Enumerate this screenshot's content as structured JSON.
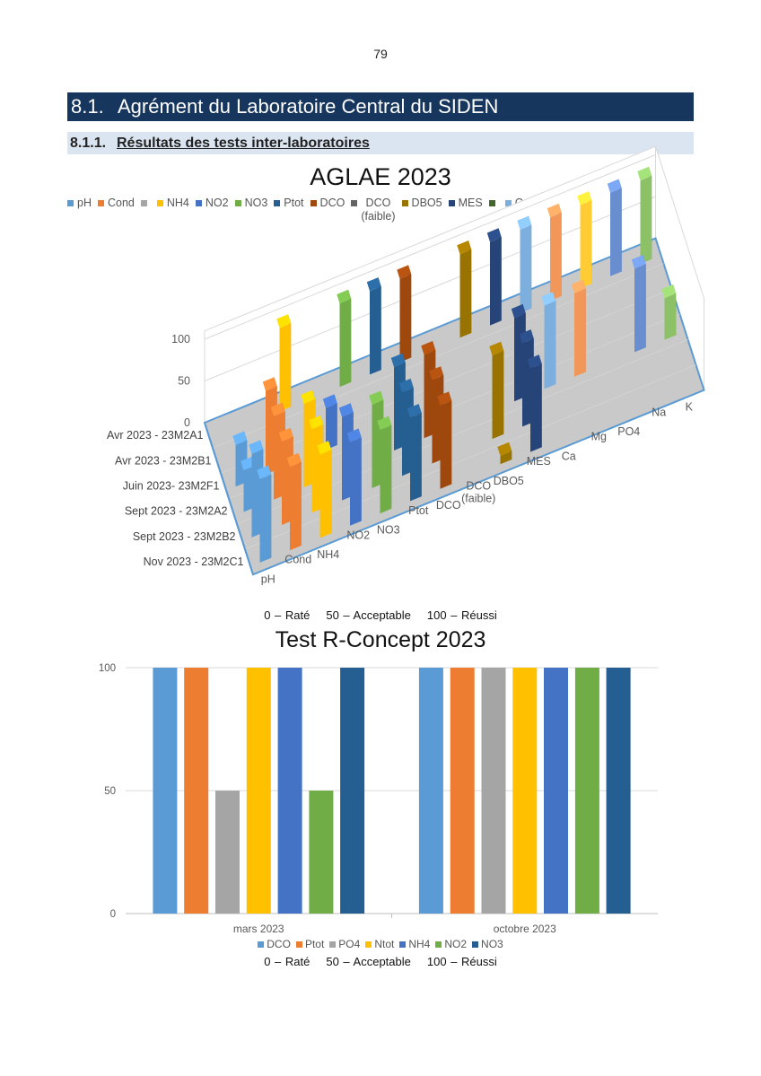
{
  "page_number": "79",
  "section": {
    "number": "8.1.",
    "title": "Agrément du Laboratoire Central du SIDEN"
  },
  "subsection": {
    "number": "8.1.1.",
    "title": "Résultats des tests inter-laboratoires"
  },
  "scale_note": [
    "0 – Raté",
    "50 – Acceptable",
    "100 – Réussi"
  ],
  "chart_data": [
    {
      "type": "bar",
      "title": "AGLAE 2023",
      "three_d": true,
      "categories": [
        "pH",
        "Cond",
        "NH4",
        "NO2",
        "NO3",
        "Ptot",
        "DCO",
        "DCO (faible)",
        "DBO5",
        "MES",
        "Ca",
        "Mg",
        "PO4",
        "Na",
        "K"
      ],
      "y_ticks": [
        "0",
        "50",
        "100"
      ],
      "ylim": [
        0,
        100
      ],
      "legend": [
        {
          "name": "pH",
          "color": "#5b9bd5"
        },
        {
          "name": "Cond",
          "color": "#ed7d31"
        },
        {
          "name": "",
          "color": "#a5a5a5"
        },
        {
          "name": "NH4",
          "color": "#ffc000"
        },
        {
          "name": "NO2",
          "color": "#4472c4"
        },
        {
          "name": "NO3",
          "color": "#70ad47"
        },
        {
          "name": "Ptot",
          "color": "#255e91"
        },
        {
          "name": "DCO",
          "color": "#9e480e"
        },
        {
          "name": "DCO\n(faible)",
          "color": "#636363"
        },
        {
          "name": "DBO5",
          "color": "#997300"
        },
        {
          "name": "MES",
          "color": "#264478"
        },
        {
          "name": "",
          "color": "#43682b"
        },
        {
          "name": "Ca",
          "color": "#7cafdd"
        },
        {
          "name": "Mg",
          "color": "#f1975a"
        },
        {
          "name": "",
          "color": "#b7b7b7"
        },
        {
          "name": "PO4",
          "color": "#ffcd33"
        },
        {
          "name": "Na",
          "color": "#698ed0"
        },
        {
          "name": "K",
          "color": "#8cc168"
        }
      ],
      "series": [
        {
          "name": "Avr 2023 - 23M2A1",
          "values": [
            null,
            null,
            100,
            null,
            100,
            100,
            100,
            null,
            100,
            100,
            100,
            100,
            100,
            100,
            100
          ]
        },
        {
          "name": "Avr 2023 - 23M2B1",
          "values": [
            null,
            null,
            null,
            null,
            null,
            null,
            null,
            null,
            null,
            null,
            null,
            null,
            null,
            null,
            null
          ]
        },
        {
          "name": "Juin 2023- 23M2F1",
          "values": [
            50,
            100,
            null,
            50,
            null,
            null,
            null,
            null,
            null,
            null,
            null,
            null,
            null,
            null,
            null
          ]
        },
        {
          "name": "Sept 2023 - 23M2A2",
          "values": [
            50,
            100,
            100,
            null,
            null,
            100,
            100,
            null,
            null,
            100,
            100,
            100,
            null,
            100,
            50
          ]
        },
        {
          "name": "Sept 2023 - 23M2B2",
          "values": [
            100,
            100,
            100,
            100,
            100,
            100,
            100,
            null,
            100,
            100,
            null,
            null,
            null,
            null,
            null
          ]
        },
        {
          "name": "Nov 2023 - 23M2C1",
          "values": [
            100,
            100,
            100,
            100,
            100,
            100,
            100,
            null,
            10,
            100,
            null,
            null,
            null,
            null,
            null
          ]
        }
      ]
    },
    {
      "type": "bar",
      "title": "Test R-Concept 2023",
      "categories": [
        "mars 2023",
        "octobre 2023"
      ],
      "y_ticks": [
        "0",
        "50",
        "100"
      ],
      "ylim": [
        0,
        100
      ],
      "series": [
        {
          "name": "DCO",
          "color": "#5b9bd5",
          "values": [
            100,
            100
          ]
        },
        {
          "name": "Ptot",
          "color": "#ed7d31",
          "values": [
            100,
            100
          ]
        },
        {
          "name": "PO4",
          "color": "#a5a5a5",
          "values": [
            50,
            100
          ]
        },
        {
          "name": "Ntot",
          "color": "#ffc000",
          "values": [
            100,
            100
          ]
        },
        {
          "name": "NH4",
          "color": "#4472c4",
          "values": [
            100,
            100
          ]
        },
        {
          "name": "NO2",
          "color": "#70ad47",
          "values": [
            50,
            100
          ]
        },
        {
          "name": "NO3",
          "color": "#255e91",
          "values": [
            100,
            100
          ]
        }
      ]
    }
  ]
}
